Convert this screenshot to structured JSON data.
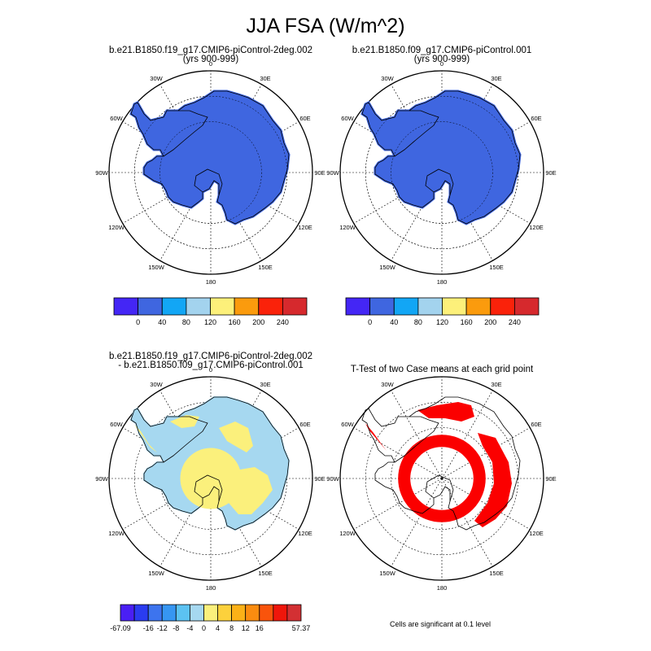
{
  "title": "JJA FSA (W/m^2)",
  "panels": [
    {
      "title_line1": "b.e21.B1850.f19_g17.CMIP6-piControl-2deg.002",
      "title_line2": "(yrs 900-999)"
    },
    {
      "title_line1": "b.e21.B1850.f09_g17.CMIP6-piControl.001",
      "title_line2": "(yrs 900-999)"
    },
    {
      "title_line1": "b.e21.B1850.f19_g17.CMIP6-piControl-2deg.002",
      "title_line2": "- b.e21.B1850.f09_g17.CMIP6-piControl.001"
    },
    {
      "title_line1": "T-Test of two Case means at each grid point",
      "title_line2": ""
    }
  ],
  "lon_labels": [
    "0",
    "30E",
    "60E",
    "90E",
    "120E",
    "150E",
    "180",
    "150W",
    "120W",
    "90W",
    "60W",
    "30W"
  ],
  "colorbar_abs": {
    "colors": [
      "#4426f5",
      "#3f66e0",
      "#12a6f5",
      "#a3d3ee",
      "#fdf07a",
      "#fb9b0d",
      "#fa220a",
      "#d6292d"
    ],
    "labels": [
      "0",
      "40",
      "80",
      "120",
      "160",
      "200",
      "240"
    ]
  },
  "colorbar_diff": {
    "colors": [
      "#4a1ff4",
      "#2a3cf0",
      "#3d74ee",
      "#3696f2",
      "#5cc2f2",
      "#a6d8f0",
      "#fbf07c",
      "#fcd13c",
      "#fbb117",
      "#fb8c10",
      "#f9540c",
      "#ef160b",
      "#d33033"
    ],
    "labels": [
      "-67.09",
      "-16",
      "-12",
      "-8",
      "-4",
      "0",
      "4",
      "8",
      "12",
      "16",
      "57.37"
    ]
  },
  "map_colors": {
    "field": "#3f66e0",
    "diff_positive": "#fbf07c",
    "diff_zero": "#a6d8f0",
    "significant": "#fb0000"
  },
  "footnote": "Cells are significant at 0.1 level"
}
